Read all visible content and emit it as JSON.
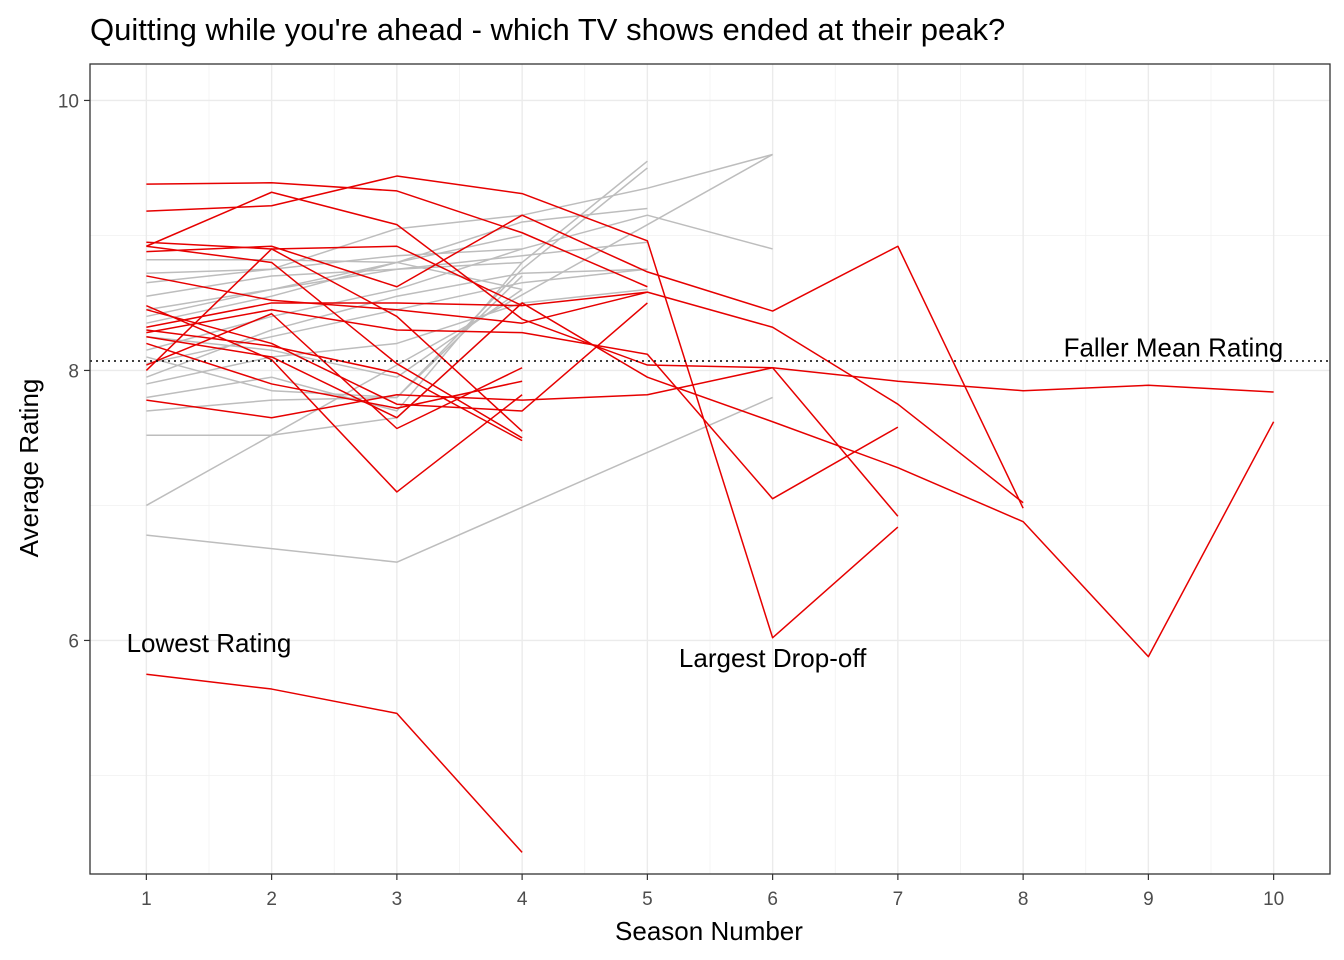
{
  "chart_data": {
    "type": "line",
    "title": "Quitting while you're ahead - which TV shows ended at their peak?",
    "xlabel": "Season Number",
    "ylabel": "Average Rating",
    "xlim": [
      0.55,
      10.45
    ],
    "ylim": [
      4.27,
      10.27
    ],
    "x_ticks": [
      1,
      2,
      3,
      4,
      5,
      6,
      7,
      8,
      9,
      10
    ],
    "y_ticks": [
      6,
      8,
      10
    ],
    "grid": true,
    "colors": {
      "fallers": "#e60000",
      "peakers": "#bdbdbd",
      "mean_line": "#000000"
    },
    "reference_line": {
      "y": 8.07,
      "style": "dotted",
      "label": "Faller Mean Rating"
    },
    "annotations": [
      {
        "text": "Lowest Rating",
        "x": 1.5,
        "y": 5.98
      },
      {
        "text": "Largest Drop-off",
        "x": 6.0,
        "y": 5.87
      },
      {
        "text": "Faller Mean Rating",
        "x": 9.2,
        "y": 8.17
      }
    ],
    "series_gray": [
      {
        "values": [
          [
            1,
            7.0
          ],
          [
            6,
            9.6
          ]
        ]
      },
      {
        "values": [
          [
            1,
            6.78
          ],
          [
            3,
            6.58
          ],
          [
            6,
            7.8
          ]
        ]
      },
      {
        "values": [
          [
            1,
            7.52
          ],
          [
            2,
            7.52
          ],
          [
            3,
            7.65
          ],
          [
            4,
            8.5
          ]
        ]
      },
      {
        "values": [
          [
            1,
            7.7
          ],
          [
            2,
            7.78
          ],
          [
            3,
            7.8
          ],
          [
            4,
            8.7
          ]
        ]
      },
      {
        "values": [
          [
            1,
            7.8
          ],
          [
            2,
            7.95
          ],
          [
            3,
            7.7
          ],
          [
            4,
            8.8
          ],
          [
            5,
            9.55
          ]
        ]
      },
      {
        "values": [
          [
            1,
            7.95
          ],
          [
            2,
            8.3
          ],
          [
            3,
            8.55
          ],
          [
            4,
            8.72
          ],
          [
            5,
            8.75
          ]
        ]
      },
      {
        "values": [
          [
            1,
            8.05
          ],
          [
            2,
            8.25
          ],
          [
            3,
            8.45
          ],
          [
            4,
            8.65
          ],
          [
            5,
            8.75
          ]
        ]
      },
      {
        "values": [
          [
            1,
            8.1
          ],
          [
            2,
            7.85
          ],
          [
            3,
            7.8
          ],
          [
            4,
            8.75
          ],
          [
            5,
            9.5
          ]
        ]
      },
      {
        "values": [
          [
            1,
            8.15
          ],
          [
            2,
            8.4
          ],
          [
            3,
            8.6
          ],
          [
            4,
            8.9
          ],
          [
            5,
            9.15
          ],
          [
            6,
            8.9
          ]
        ]
      },
      {
        "values": [
          [
            1,
            8.25
          ],
          [
            2,
            8.15
          ],
          [
            3,
            7.95
          ],
          [
            4,
            8.6
          ]
        ]
      },
      {
        "values": [
          [
            1,
            8.35
          ],
          [
            2,
            8.55
          ],
          [
            3,
            8.8
          ],
          [
            4,
            9.1
          ],
          [
            5,
            9.2
          ]
        ]
      },
      {
        "values": [
          [
            1,
            8.4
          ],
          [
            2,
            8.6
          ],
          [
            3,
            8.75
          ],
          [
            4,
            8.8
          ]
        ]
      },
      {
        "values": [
          [
            1,
            8.45
          ],
          [
            2,
            8.6
          ],
          [
            3,
            8.8
          ],
          [
            4,
            9.0
          ]
        ]
      },
      {
        "values": [
          [
            1,
            8.55
          ],
          [
            2,
            8.7
          ],
          [
            3,
            8.75
          ],
          [
            4,
            8.85
          ],
          [
            5,
            8.95
          ]
        ]
      },
      {
        "values": [
          [
            1,
            8.65
          ],
          [
            2,
            8.75
          ],
          [
            3,
            8.85
          ],
          [
            4,
            8.9
          ]
        ]
      },
      {
        "values": [
          [
            1,
            8.72
          ],
          [
            2,
            8.75
          ],
          [
            3,
            9.05
          ],
          [
            4,
            9.15
          ],
          [
            5,
            9.35
          ],
          [
            6,
            9.6
          ]
        ]
      },
      {
        "values": [
          [
            1,
            8.82
          ],
          [
            2,
            8.82
          ],
          [
            3,
            8.8
          ],
          [
            4,
            8.6
          ]
        ]
      },
      {
        "values": [
          [
            1,
            7.9
          ],
          [
            2,
            8.1
          ],
          [
            3,
            8.2
          ],
          [
            4,
            8.5
          ],
          [
            5,
            8.6
          ]
        ]
      }
    ],
    "series_red": [
      {
        "values": [
          [
            1,
            9.38
          ],
          [
            2,
            9.39
          ],
          [
            3,
            9.33
          ],
          [
            4,
            9.02
          ],
          [
            5,
            8.62
          ]
        ]
      },
      {
        "values": [
          [
            1,
            9.18
          ],
          [
            2,
            9.22
          ],
          [
            3,
            9.44
          ],
          [
            4,
            9.31
          ],
          [
            5,
            8.96
          ],
          [
            6,
            6.02
          ],
          [
            7,
            6.84
          ]
        ]
      },
      {
        "values": [
          [
            1,
            8.92
          ],
          [
            2,
            9.32
          ],
          [
            3,
            9.08
          ],
          [
            4,
            8.38
          ],
          [
            5,
            8.04
          ],
          [
            6,
            8.02
          ],
          [
            7,
            7.92
          ],
          [
            8,
            7.85
          ],
          [
            9,
            7.89
          ],
          [
            10,
            7.84
          ]
        ]
      },
      {
        "values": [
          [
            1,
            8.95
          ],
          [
            2,
            8.9
          ],
          [
            3,
            8.92
          ],
          [
            4,
            8.48
          ]
        ]
      },
      {
        "values": [
          [
            1,
            8.88
          ],
          [
            2,
            8.92
          ],
          [
            3,
            8.62
          ],
          [
            4,
            9.15
          ],
          [
            5,
            8.73
          ],
          [
            6,
            8.44
          ],
          [
            7,
            8.92
          ],
          [
            8,
            6.98
          ]
        ]
      },
      {
        "values": [
          [
            1,
            8.7
          ],
          [
            2,
            8.52
          ],
          [
            3,
            8.45
          ],
          [
            4,
            8.35
          ],
          [
            5,
            8.58
          ],
          [
            6,
            8.32
          ],
          [
            7,
            7.75
          ],
          [
            8,
            7.02
          ]
        ]
      },
      {
        "values": [
          [
            1,
            8.48
          ],
          [
            2,
            8.08
          ],
          [
            3,
            7.1
          ],
          [
            4,
            7.82
          ]
        ]
      },
      {
        "values": [
          [
            1,
            8.32
          ],
          [
            2,
            8.5
          ],
          [
            3,
            8.5
          ],
          [
            4,
            8.48
          ],
          [
            5,
            8.58
          ]
        ]
      },
      {
        "values": [
          [
            1,
            8.3
          ],
          [
            2,
            8.18
          ],
          [
            3,
            7.98
          ],
          [
            4,
            7.48
          ]
        ]
      },
      {
        "values": [
          [
            1,
            8.28
          ],
          [
            2,
            8.45
          ],
          [
            3,
            8.3
          ],
          [
            4,
            8.28
          ],
          [
            5,
            8.12
          ],
          [
            6,
            7.05
          ],
          [
            7,
            7.58
          ]
        ]
      },
      {
        "values": [
          [
            1,
            8.04
          ],
          [
            2,
            8.42
          ],
          [
            3,
            7.57
          ],
          [
            4,
            8.02
          ]
        ]
      },
      {
        "values": [
          [
            1,
            7.78
          ],
          [
            2,
            7.65
          ],
          [
            3,
            7.82
          ],
          [
            4,
            7.78
          ],
          [
            5,
            7.82
          ],
          [
            6,
            8.02
          ],
          [
            7,
            6.92
          ]
        ]
      },
      {
        "values": [
          [
            1,
            8.2
          ],
          [
            2,
            7.9
          ],
          [
            3,
            7.72
          ],
          [
            4,
            7.92
          ]
        ]
      },
      {
        "values": [
          [
            1,
            8.0
          ],
          [
            2,
            8.9
          ],
          [
            3,
            8.4
          ],
          [
            4,
            7.55
          ]
        ]
      },
      {
        "values": [
          [
            1,
            8.25
          ],
          [
            2,
            8.1
          ],
          [
            3,
            7.65
          ],
          [
            4,
            8.5
          ],
          [
            5,
            7.95
          ],
          [
            6,
            7.62
          ],
          [
            7,
            7.28
          ],
          [
            8,
            6.88
          ],
          [
            9,
            5.88
          ],
          [
            10,
            7.62
          ]
        ]
      },
      {
        "values": [
          [
            1,
            8.45
          ],
          [
            2,
            8.2
          ],
          [
            3,
            7.75
          ],
          [
            4,
            7.7
          ],
          [
            5,
            8.5
          ]
        ]
      },
      {
        "values": [
          [
            1,
            8.92
          ],
          [
            2,
            8.8
          ],
          [
            3,
            8.05
          ],
          [
            4,
            7.5
          ]
        ]
      },
      {
        "values": [
          [
            1,
            5.75
          ],
          [
            2,
            5.64
          ],
          [
            3,
            5.46
          ],
          [
            4,
            4.43
          ]
        ]
      }
    ]
  }
}
